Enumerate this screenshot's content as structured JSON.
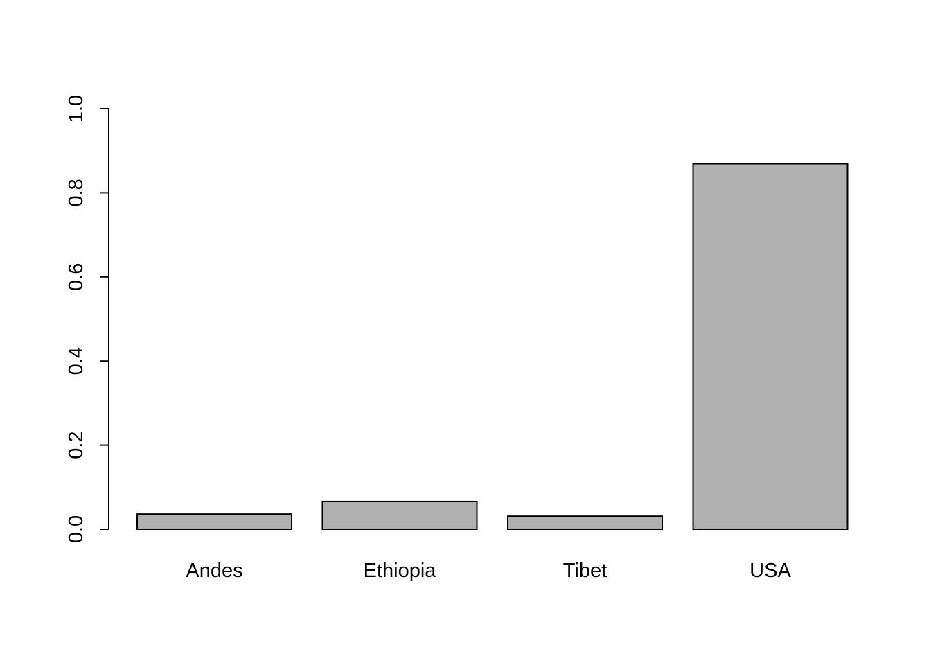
{
  "chart_data": {
    "type": "bar",
    "categories": [
      "Andes",
      "Ethiopia",
      "Tibet",
      "USA"
    ],
    "values": [
      0.036,
      0.066,
      0.031,
      0.869
    ],
    "ylim": [
      0,
      1
    ],
    "yticks": [
      "0.0",
      "0.2",
      "0.4",
      "0.6",
      "0.8",
      "1.0"
    ],
    "title": "",
    "xlabel": "",
    "ylabel": "",
    "grid": false,
    "colors": {
      "bar_fill": "#b0b0b0",
      "bar_stroke": "#000000",
      "background": "#ffffff"
    }
  }
}
